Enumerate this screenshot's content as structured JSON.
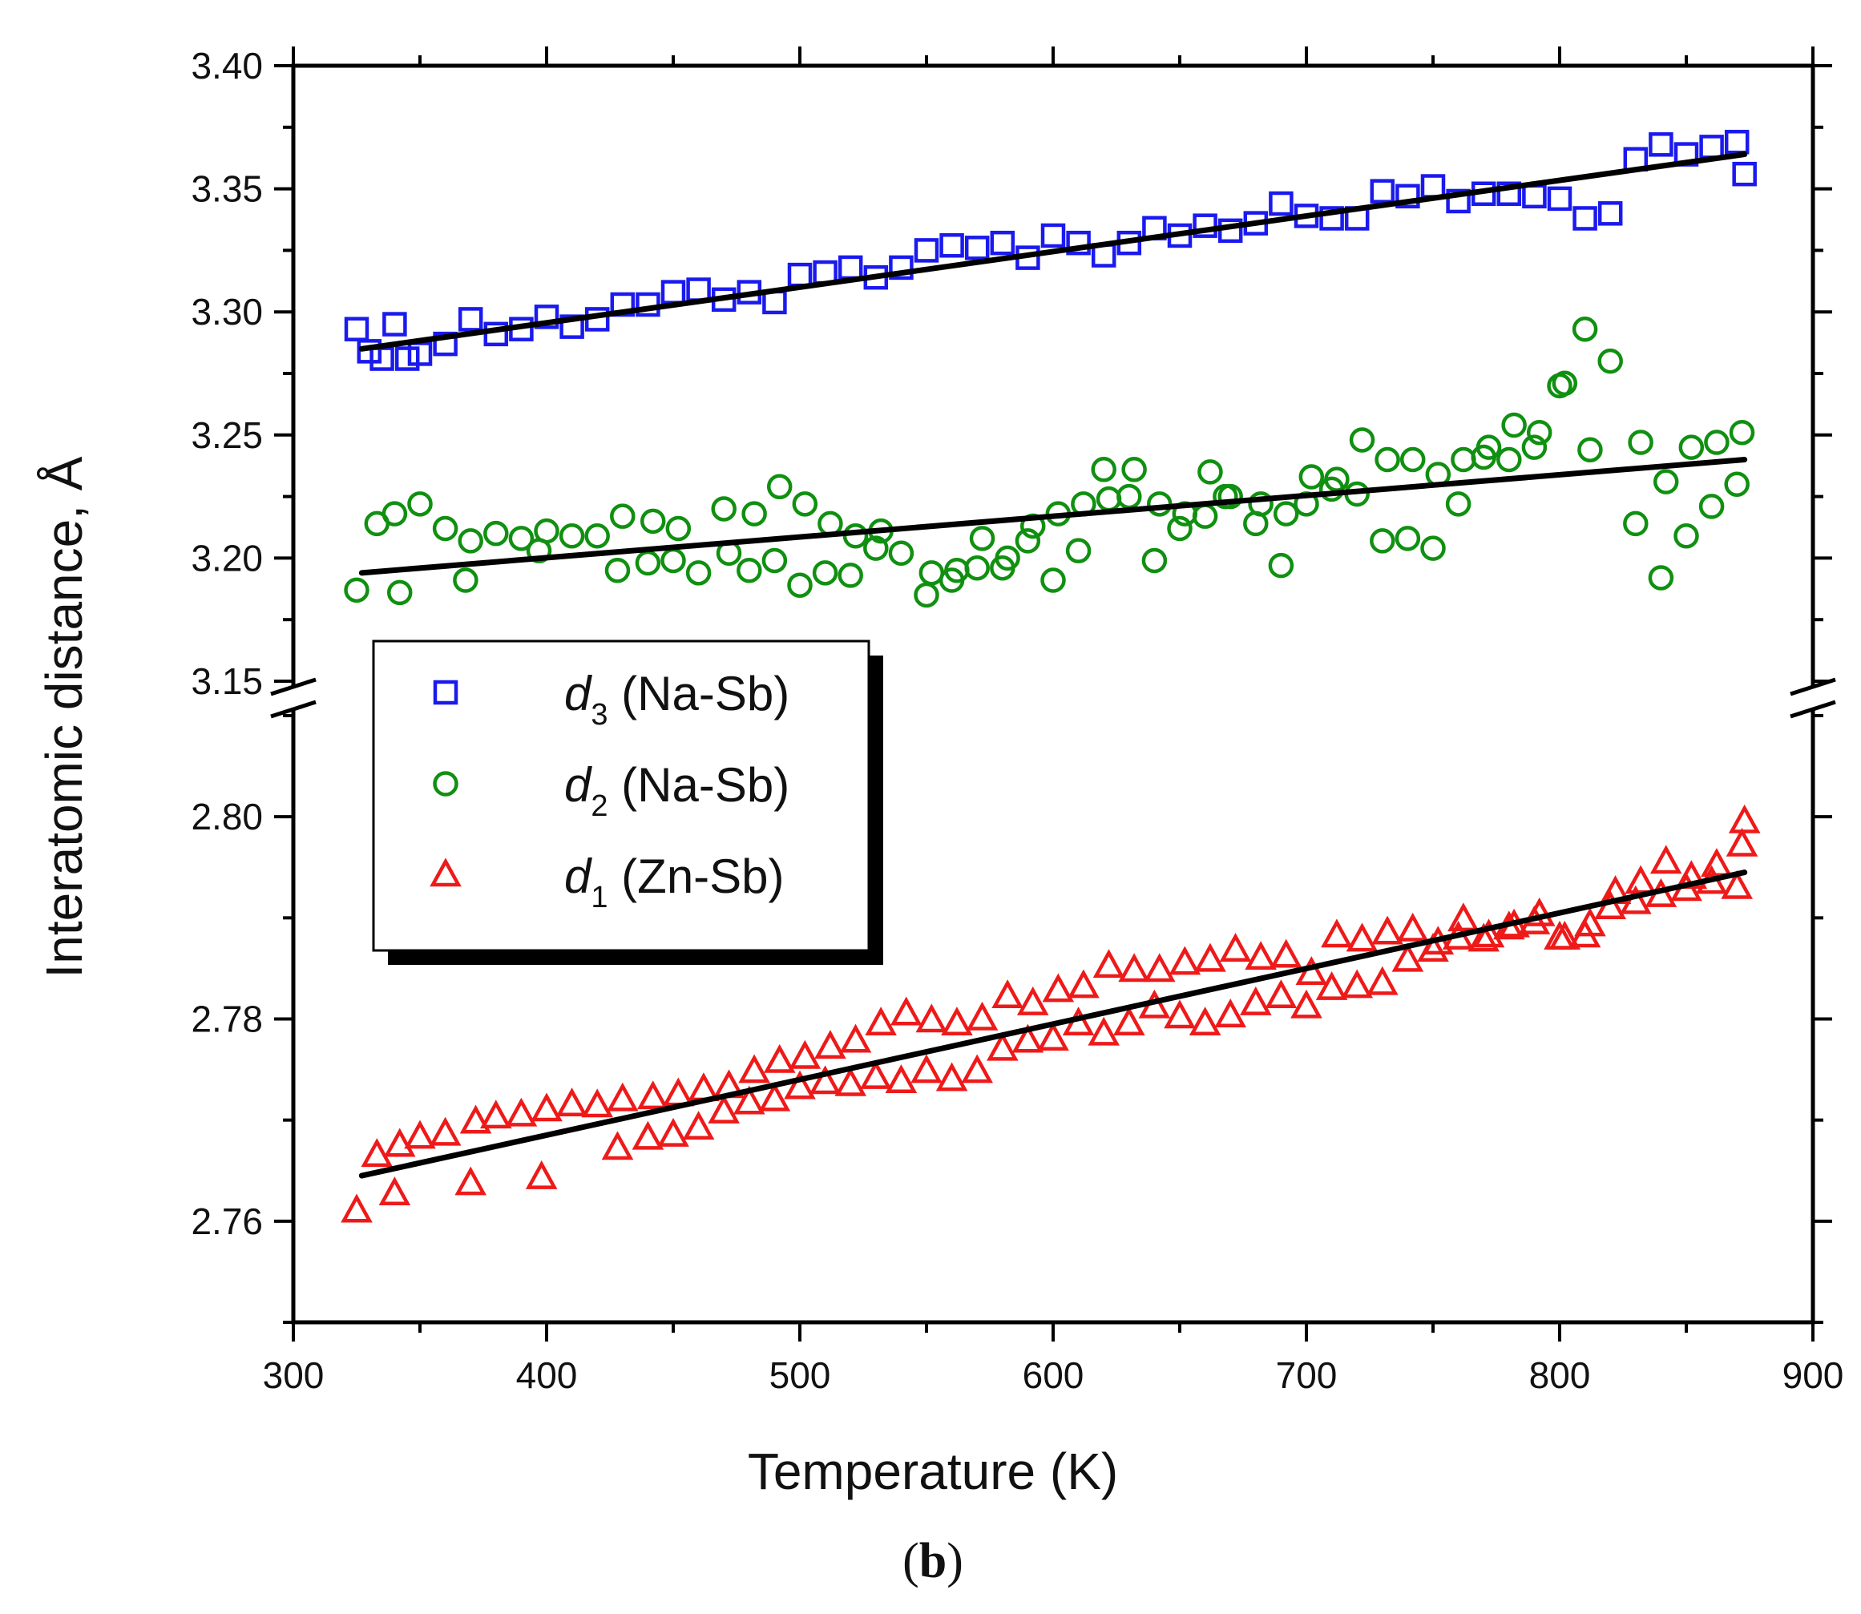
{
  "chart_data": {
    "type": "scatter",
    "title": "",
    "xlabel": "Temperature (K)",
    "ylabel": "Interatomic distance, Å",
    "caption_open": "(",
    "caption_letter": "b",
    "caption_close": ")",
    "xlim": [
      300,
      900
    ],
    "x_ticks": [
      "300",
      "400",
      "500",
      "600",
      "700",
      "800",
      "900"
    ],
    "y_break": true,
    "upper_segment": {
      "ylim": [
        3.15,
        3.4
      ],
      "ticks": [
        "3.15",
        "3.20",
        "3.25",
        "3.30",
        "3.35",
        "3.40"
      ]
    },
    "lower_segment": {
      "ylim": [
        2.75,
        2.81
      ],
      "ticks": [
        "2.76",
        "2.78",
        "2.80"
      ]
    },
    "legend_placement": "left-middle",
    "series": [
      {
        "name": "d3 (Na-Sb)",
        "legend_symbol": "d",
        "legend_subscript": "3",
        "legend_suffix": " (Na-Sb)",
        "marker": "square",
        "color": "#1a1aee",
        "segment": "upper",
        "x": [
          325,
          330,
          335,
          340,
          345,
          350,
          360,
          370,
          380,
          390,
          400,
          410,
          420,
          430,
          440,
          450,
          460,
          470,
          480,
          490,
          500,
          510,
          520,
          530,
          540,
          550,
          560,
          570,
          580,
          590,
          600,
          610,
          620,
          630,
          640,
          650,
          660,
          670,
          680,
          690,
          700,
          710,
          720,
          730,
          740,
          750,
          760,
          770,
          780,
          790,
          800,
          810,
          820,
          830,
          840,
          850,
          860,
          870,
          873
        ],
        "y": [
          3.293,
          3.284,
          3.281,
          3.295,
          3.281,
          3.283,
          3.287,
          3.297,
          3.291,
          3.293,
          3.298,
          3.294,
          3.297,
          3.303,
          3.303,
          3.308,
          3.309,
          3.305,
          3.308,
          3.304,
          3.315,
          3.316,
          3.318,
          3.314,
          3.318,
          3.325,
          3.327,
          3.326,
          3.328,
          3.322,
          3.331,
          3.328,
          3.323,
          3.328,
          3.334,
          3.331,
          3.335,
          3.333,
          3.336,
          3.344,
          3.339,
          3.338,
          3.338,
          3.349,
          3.347,
          3.351,
          3.345,
          3.348,
          3.348,
          3.347,
          3.346,
          3.338,
          3.34,
          3.362,
          3.368,
          3.364,
          3.367,
          3.369,
          3.356
        ]
      },
      {
        "name": "d2 (Na-Sb)",
        "legend_symbol": "d",
        "legend_subscript": "2",
        "legend_suffix": " (Na-Sb)",
        "marker": "circle",
        "color": "#109010",
        "segment": "upper",
        "x": [
          325,
          333,
          340,
          342,
          350,
          360,
          368,
          370,
          380,
          390,
          397,
          400,
          410,
          420,
          428,
          430,
          440,
          442,
          450,
          452,
          460,
          470,
          472,
          480,
          482,
          490,
          492,
          500,
          502,
          510,
          512,
          520,
          522,
          530,
          532,
          540,
          550,
          552,
          560,
          562,
          570,
          572,
          580,
          582,
          590,
          592,
          600,
          602,
          610,
          612,
          620,
          622,
          630,
          632,
          640,
          642,
          650,
          652,
          660,
          662,
          668,
          670,
          680,
          682,
          690,
          692,
          700,
          702,
          710,
          712,
          720,
          722,
          730,
          732,
          740,
          742,
          750,
          752,
          760,
          762,
          770,
          772,
          780,
          782,
          790,
          792,
          800,
          802,
          810,
          812,
          820,
          830,
          832,
          840,
          842,
          850,
          852,
          860,
          862,
          870,
          872
        ],
        "y": [
          3.187,
          3.214,
          3.218,
          3.186,
          3.222,
          3.212,
          3.191,
          3.207,
          3.21,
          3.208,
          3.203,
          3.211,
          3.209,
          3.209,
          3.195,
          3.217,
          3.198,
          3.215,
          3.199,
          3.212,
          3.194,
          3.22,
          3.202,
          3.195,
          3.218,
          3.199,
          3.229,
          3.189,
          3.222,
          3.194,
          3.214,
          3.193,
          3.209,
          3.204,
          3.211,
          3.202,
          3.185,
          3.194,
          3.191,
          3.195,
          3.196,
          3.208,
          3.196,
          3.2,
          3.207,
          3.213,
          3.191,
          3.218,
          3.203,
          3.222,
          3.236,
          3.224,
          3.225,
          3.236,
          3.199,
          3.222,
          3.212,
          3.218,
          3.217,
          3.235,
          3.225,
          3.225,
          3.214,
          3.222,
          3.197,
          3.218,
          3.222,
          3.233,
          3.228,
          3.232,
          3.226,
          3.248,
          3.207,
          3.24,
          3.208,
          3.24,
          3.204,
          3.234,
          3.222,
          3.24,
          3.241,
          3.245,
          3.24,
          3.254,
          3.245,
          3.251,
          3.27,
          3.271,
          3.293,
          3.244,
          3.28,
          3.214,
          3.247,
          3.192,
          3.231,
          3.209,
          3.245,
          3.221,
          3.247,
          3.23,
          3.251
        ]
      },
      {
        "name": "d1 (Zn-Sb)",
        "legend_symbol": "d",
        "legend_subscript": "1",
        "legend_suffix": " (Zn-Sb)",
        "marker": "triangle",
        "color": "#ee1a1a",
        "segment": "lower",
        "x": [
          325,
          333,
          340,
          342,
          350,
          360,
          370,
          372,
          380,
          390,
          398,
          400,
          410,
          420,
          428,
          430,
          440,
          442,
          450,
          452,
          460,
          462,
          470,
          472,
          480,
          482,
          490,
          492,
          500,
          502,
          510,
          512,
          520,
          522,
          530,
          532,
          540,
          542,
          550,
          552,
          560,
          562,
          570,
          572,
          580,
          582,
          590,
          592,
          600,
          602,
          610,
          612,
          620,
          622,
          630,
          632,
          640,
          642,
          650,
          652,
          660,
          662,
          670,
          672,
          680,
          682,
          690,
          692,
          700,
          702,
          710,
          712,
          720,
          722,
          730,
          732,
          740,
          742,
          750,
          752,
          760,
          762,
          770,
          772,
          780,
          782,
          790,
          792,
          800,
          802,
          810,
          812,
          820,
          822,
          830,
          832,
          840,
          842,
          850,
          852,
          860,
          862,
          870,
          872,
          873
        ],
        "y": [
          2.761,
          2.7665,
          2.7627,
          2.7675,
          2.7683,
          2.7686,
          2.7637,
          2.7698,
          2.7703,
          2.7705,
          2.7643,
          2.771,
          2.7715,
          2.7714,
          2.7672,
          2.772,
          2.7682,
          2.7722,
          2.7685,
          2.7725,
          2.7692,
          2.773,
          2.7708,
          2.7733,
          2.7717,
          2.7748,
          2.772,
          2.7758,
          2.7732,
          2.7762,
          2.7737,
          2.7772,
          2.7735,
          2.7778,
          2.7742,
          2.7795,
          2.7738,
          2.7805,
          2.7748,
          2.7798,
          2.774,
          2.7795,
          2.7748,
          2.78,
          2.777,
          2.7822,
          2.7778,
          2.7815,
          2.778,
          2.7828,
          2.7795,
          2.7832,
          2.7785,
          2.7852,
          2.7795,
          2.7848,
          2.7812,
          2.7848,
          2.7802,
          2.7855,
          2.7795,
          2.7858,
          2.7803,
          2.7868,
          2.7815,
          2.786,
          2.7822,
          2.7862,
          2.7812,
          2.7845,
          2.783,
          2.7882,
          2.7832,
          2.7878,
          2.7835,
          2.7885,
          2.7858,
          2.7888,
          2.7868,
          2.7875,
          2.788,
          2.7898,
          2.7878,
          2.7882,
          2.789,
          2.7892,
          2.7895,
          2.7903,
          2.788,
          2.788,
          2.7882,
          2.7893,
          2.791,
          2.7925,
          2.7915,
          2.7935,
          2.7922,
          2.7955,
          2.7928,
          2.794,
          2.7935,
          2.7952,
          2.793,
          2.7972,
          2.7995
        ]
      }
    ],
    "fits": [
      {
        "series": "d3 (Na-Sb)",
        "segment": "upper",
        "x": [
          327,
          873
        ],
        "y": [
          3.285,
          3.364
        ]
      },
      {
        "series": "d2 (Na-Sb)",
        "segment": "upper",
        "x": [
          327,
          873
        ],
        "y": [
          3.194,
          3.24
        ]
      },
      {
        "series": "d1 (Zn-Sb)",
        "segment": "lower",
        "x": [
          327,
          873
        ],
        "y": [
          2.7645,
          2.7945
        ]
      }
    ]
  }
}
